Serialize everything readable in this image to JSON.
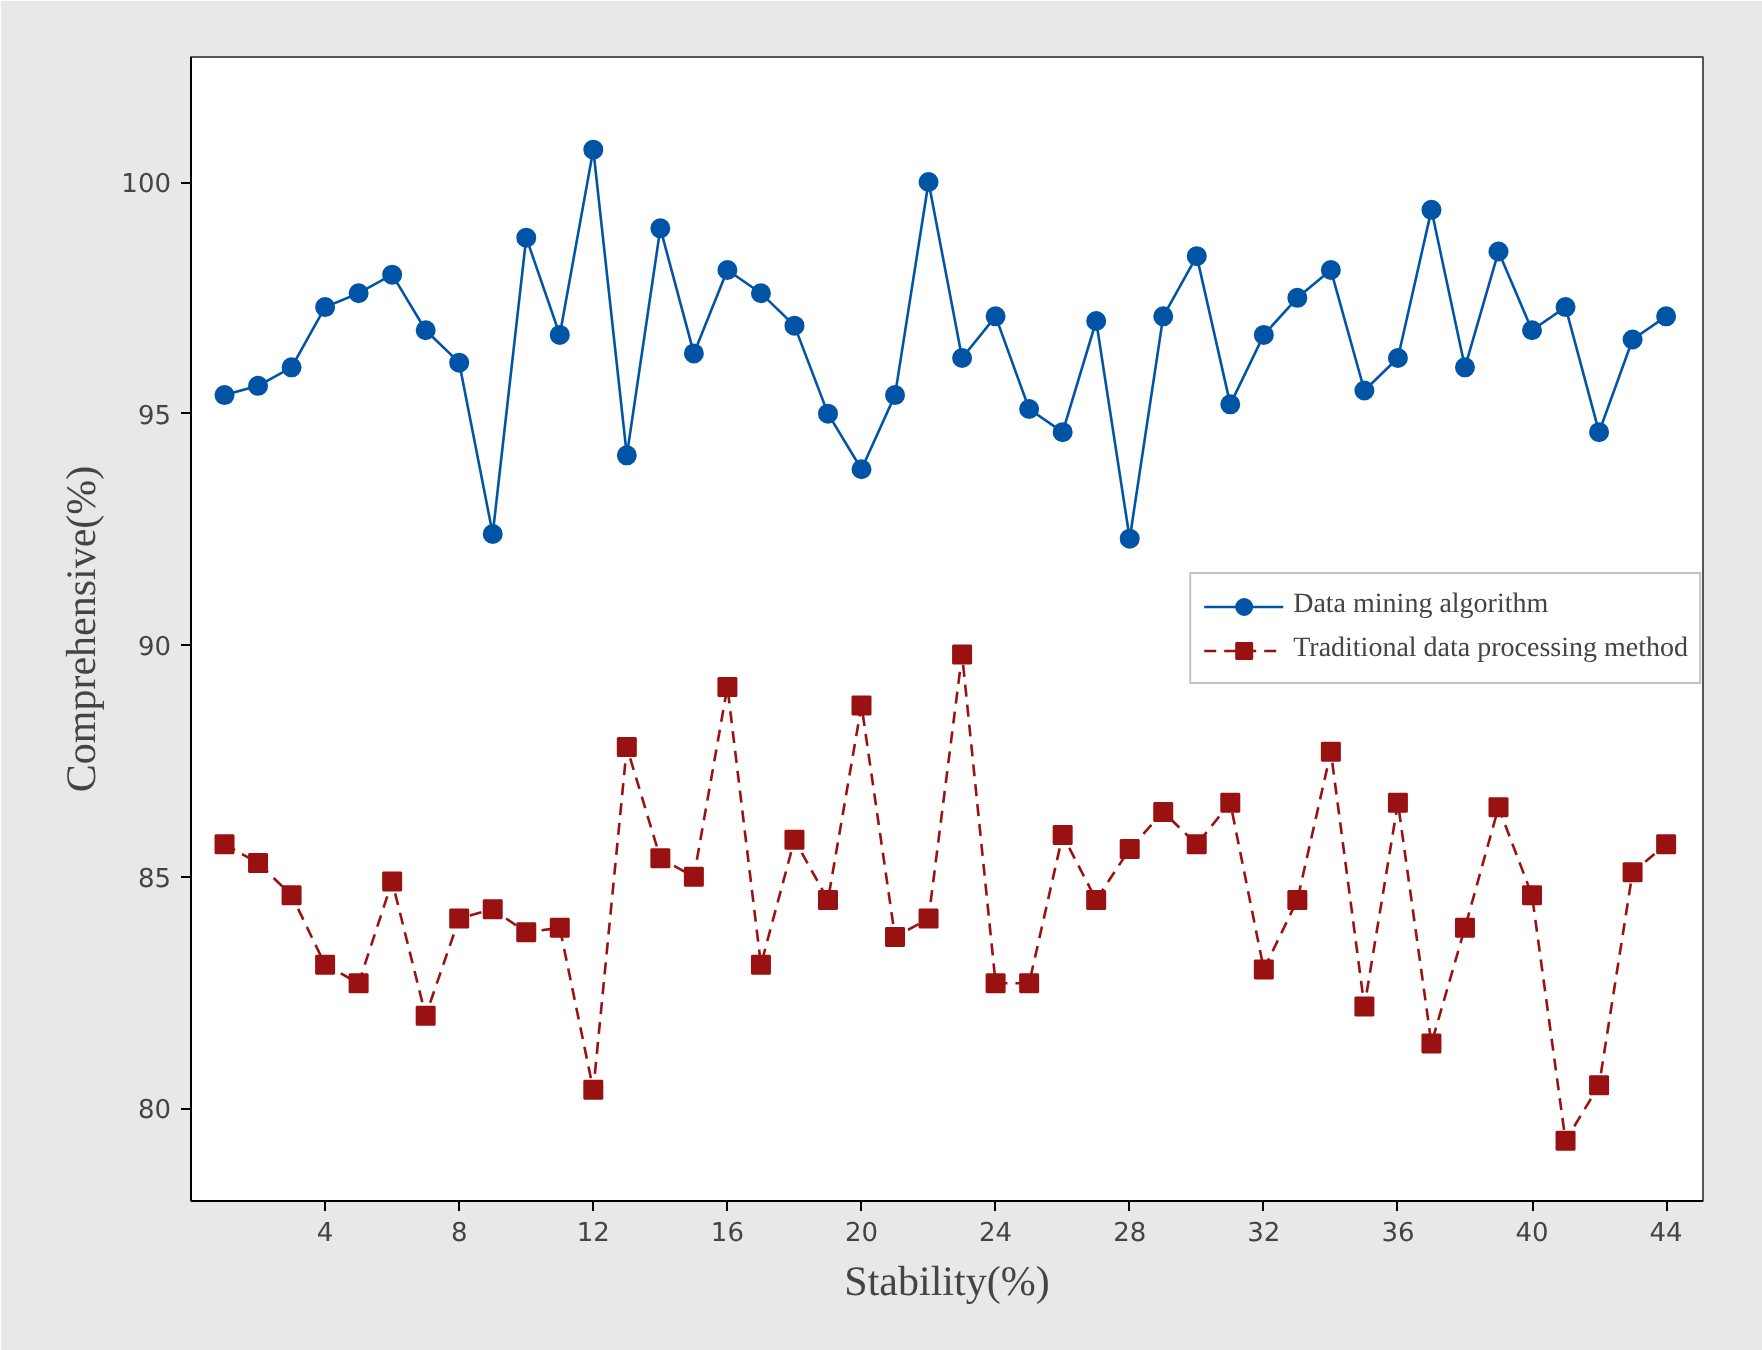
{
  "chart_data": {
    "type": "line",
    "xlabel": "Stability(%)",
    "ylabel": "Comprehensive(%)",
    "x": [
      1,
      2,
      3,
      4,
      5,
      6,
      7,
      8,
      9,
      10,
      11,
      12,
      13,
      14,
      15,
      16,
      17,
      18,
      19,
      20,
      21,
      22,
      23,
      24,
      25,
      26,
      27,
      28,
      29,
      30,
      31,
      32,
      33,
      34,
      35,
      36,
      37,
      38,
      39,
      40,
      41,
      42,
      43,
      44
    ],
    "series": [
      {
        "name": "Data mining algorithm",
        "color": "#0054a6",
        "marker": "circle",
        "line_style": "solid",
        "values": [
          95.4,
          95.6,
          96.0,
          97.3,
          97.6,
          98.0,
          96.8,
          96.1,
          92.4,
          98.8,
          96.7,
          100.7,
          94.1,
          99.0,
          96.3,
          98.1,
          97.6,
          96.9,
          95.0,
          93.8,
          95.4,
          100.0,
          96.2,
          97.1,
          95.1,
          94.6,
          97.0,
          92.3,
          97.1,
          98.4,
          95.2,
          96.7,
          97.5,
          98.1,
          95.5,
          96.2,
          99.4,
          96.0,
          98.5,
          96.8,
          97.3,
          94.6,
          96.6,
          97.1
        ]
      },
      {
        "name": "Traditional data processing method",
        "color": "#991111",
        "marker": "square",
        "line_style": "dashed",
        "values": [
          85.7,
          85.3,
          84.6,
          83.1,
          82.7,
          84.9,
          82.0,
          84.1,
          84.3,
          83.8,
          83.9,
          80.4,
          87.8,
          85.4,
          85.0,
          89.1,
          83.1,
          85.8,
          84.5,
          88.7,
          83.7,
          84.1,
          89.8,
          82.7,
          82.7,
          85.9,
          84.5,
          85.6,
          86.4,
          85.7,
          86.6,
          83.0,
          84.5,
          87.7,
          82.2,
          86.6,
          81.4,
          83.9,
          86.5,
          84.6,
          79.3,
          80.5,
          85.1,
          85.7
        ]
      }
    ],
    "xlim": [
      0,
      45.1
    ],
    "ylim": [
      78.0,
      102.7
    ],
    "xticks": [
      4,
      8,
      12,
      16,
      20,
      24,
      28,
      32,
      36,
      40,
      44
    ],
    "yticks": [
      80,
      85,
      90,
      95,
      100
    ],
    "grid": false,
    "legend": "right"
  }
}
